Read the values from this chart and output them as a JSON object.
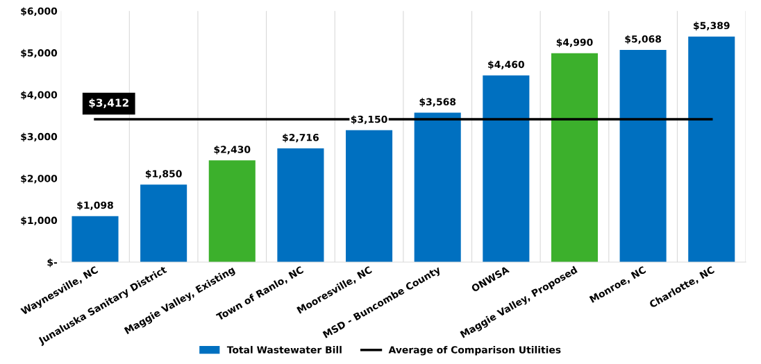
{
  "chart_data": {
    "type": "bar",
    "categories": [
      "Waynesville, NC",
      "Junaluska Sanitary District",
      "Maggie Valley, Existing",
      "Town of Ranlo, NC",
      "Mooresville, NC",
      "MSD - Buncombe County",
      "ONWSA",
      "Maggie Valley, Proposed",
      "Monroe, NC",
      "Charlotte, NC"
    ],
    "series": [
      {
        "name": "Total Wastewater Bill",
        "color": "#0070c0",
        "colors": [
          "#0070c0",
          "#0070c0",
          "#3cb02c",
          "#0070c0",
          "#0070c0",
          "#0070c0",
          "#0070c0",
          "#3cb02c",
          "#0070c0",
          "#0070c0"
        ],
        "values": [
          1098,
          1850,
          2430,
          2716,
          3150,
          3568,
          4460,
          4990,
          5068,
          5389
        ],
        "value_labels": [
          "$1,098",
          "$1,850",
          "$2,430",
          "$2,716",
          "$3,150",
          "$3,568",
          "$4,460",
          "$4,990",
          "$5,068",
          "$5,389"
        ]
      },
      {
        "name": "Average of Comparison Utilities",
        "type": "line",
        "color": "#000000",
        "x": [
          "Waynesville, NC",
          "Charlotte, NC"
        ],
        "values": [
          3412,
          3412
        ]
      }
    ],
    "annotations": [
      {
        "text": "$3,412",
        "x": "Waynesville, NC",
        "y": 3412
      }
    ],
    "ylim": [
      0,
      6000
    ],
    "yticks": [
      {
        "value": 0,
        "label": "$-"
      },
      {
        "value": 1000,
        "label": "$1,000"
      },
      {
        "value": 2000,
        "label": "$2,000"
      },
      {
        "value": 3000,
        "label": "$3,000"
      },
      {
        "value": 4000,
        "label": "$4,000"
      },
      {
        "value": 5000,
        "label": "$5,000"
      },
      {
        "value": 6000,
        "label": "$6,000"
      }
    ],
    "grid": "x",
    "legend": "bottom",
    "marker": "none",
    "line_style": "solid"
  }
}
